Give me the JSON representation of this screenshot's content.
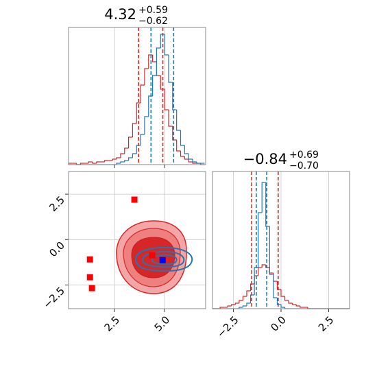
{
  "chart_data": [
    {
      "type": "histogram",
      "title": "4.32",
      "title_sup": "+0.59",
      "title_sub": "−0.62",
      "bins": [
        0.2,
        0.4,
        0.6,
        0.8,
        1.0,
        1.2,
        1.4,
        1.6,
        1.8,
        2.0,
        2.2,
        2.4,
        2.6,
        2.8,
        3.0,
        3.2,
        3.4,
        3.6,
        3.8,
        4.0,
        4.2,
        4.4,
        4.6,
        4.8,
        5.0,
        5.2,
        5.4,
        5.6,
        5.8,
        6.0,
        6.2,
        6.4,
        6.6,
        6.8,
        7.0
      ],
      "xlim": [
        0.2,
        7.05
      ],
      "xticks": [
        2.5,
        {
          "value": 5,
          "label": "5.0"
        }
      ],
      "ylim": [
        0,
        100
      ],
      "grid": true,
      "series": [
        {
          "color": "#d62728",
          "quantiles": [
            3.7,
            4.91
          ],
          "values": [
            1,
            1,
            0,
            1,
            1,
            2,
            1,
            2,
            2,
            3,
            3,
            4,
            5,
            8,
            12,
            20,
            30,
            45,
            58,
            70,
            80,
            75,
            65,
            55,
            40,
            28,
            18,
            10,
            6,
            4,
            2,
            1,
            1,
            0
          ]
        },
        {
          "color": "#1f77b4",
          "quantiles": [
            4.32,
            5.45
          ],
          "values": [
            0,
            0,
            0,
            0,
            0,
            0,
            0,
            0,
            0,
            0,
            0,
            0,
            1,
            2,
            3,
            5,
            8,
            14,
            22,
            35,
            50,
            65,
            85,
            95,
            80,
            60,
            40,
            25,
            14,
            8,
            4,
            2,
            1,
            1
          ]
        }
      ]
    },
    {
      "type": "scatter",
      "xlim": [
        0.2,
        7.05
      ],
      "ylim": [
        -3.8,
        3.75
      ],
      "xticks": [
        2.5,
        {
          "value": 5,
          "label": "5.0"
        }
      ],
      "yticks": [
        {
          "value": -2.5,
          "label": "−2.5"
        },
        {
          "value": 0,
          "label": "0.0"
        },
        2.5
      ],
      "grid": true,
      "series": [
        {
          "color": "#ff0000",
          "x": [
            3.49,
            1.27,
            1.27,
            1.37,
            4.38
          ],
          "y": [
            2.2,
            -1.09,
            -2.07,
            -2.67,
            -0.86
          ]
        },
        {
          "color": "#0000ff",
          "x": [
            4.9
          ],
          "y": [
            -1.13
          ]
        }
      ]
    },
    {
      "type": "histogram",
      "title": "−0.84",
      "title_sup": "+0.69",
      "title_sub": "−0.70",
      "bins": [
        -3.6,
        -3.4,
        -3.2,
        -3.0,
        -2.8,
        -2.6,
        -2.4,
        -2.2,
        -2.0,
        -1.8,
        -1.6,
        -1.4,
        -1.2,
        -1.0,
        -0.8,
        -0.6,
        -0.4,
        -0.2,
        0.0,
        0.2,
        0.4,
        0.6,
        0.8,
        1.0,
        1.2,
        1.4,
        1.6,
        1.8,
        2.0,
        2.2,
        2.4,
        2.6,
        2.8,
        3.0,
        3.2,
        3.4,
        3.6
      ],
      "xlim": [
        -3.6,
        3.6
      ],
      "xticks": [
        {
          "value": -2.5,
          "label": "−2.5"
        },
        {
          "value": 0,
          "label": "0.0"
        },
        2.5
      ],
      "ylim": [
        0,
        100
      ],
      "grid": true,
      "series": [
        {
          "color": "#d62728",
          "quantiles": [
            -1.54,
            -0.15
          ],
          "values": [
            0,
            0,
            1,
            1,
            2,
            3,
            4,
            6,
            9,
            13,
            18,
            24,
            30,
            32,
            30,
            26,
            20,
            14,
            9,
            6,
            4,
            3,
            2,
            1,
            1,
            0,
            0,
            0,
            0,
            0,
            0,
            0,
            0,
            0,
            0,
            0
          ]
        },
        {
          "color": "#1f77b4",
          "quantiles": [
            -1.3,
            -0.75
          ],
          "values": [
            0,
            0,
            0,
            0,
            0,
            0,
            0,
            1,
            2,
            4,
            10,
            30,
            70,
            92,
            60,
            25,
            8,
            3,
            1,
            0,
            0,
            0,
            0,
            0,
            0,
            0,
            0,
            0,
            0,
            0,
            0,
            0,
            0,
            0,
            0,
            0
          ]
        }
      ]
    }
  ]
}
